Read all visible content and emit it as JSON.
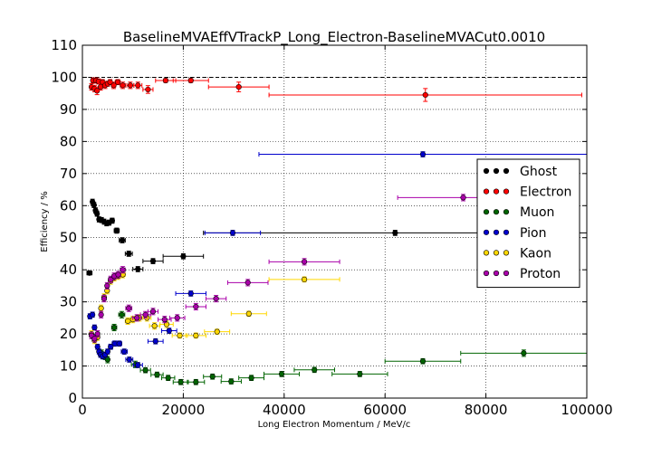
{
  "chart_data": {
    "type": "scatter",
    "title": "BaselineMVAEffVTrackP_Long_Electron-BaselineMVACut0.0010",
    "xlabel": "Long Electron Momentum / MeV/c",
    "ylabel": "Efficiency / %",
    "xlim": [
      0,
      100000
    ],
    "ylim": [
      0,
      110
    ],
    "x_ticks": [
      0,
      20000,
      40000,
      60000,
      80000,
      100000
    ],
    "y_ticks": [
      0,
      10,
      20,
      30,
      40,
      50,
      60,
      70,
      80,
      90,
      100,
      110
    ],
    "x_tick_labels": [
      "0",
      "20000",
      "40000",
      "60000",
      "80000",
      "100000"
    ],
    "y_tick_labels": [
      "0",
      "10",
      "20",
      "30",
      "40",
      "50",
      "60",
      "70",
      "80",
      "90",
      "100",
      "110"
    ],
    "grid": true,
    "reference_line": 100,
    "legend_position": "right",
    "series": [
      {
        "name": "Ghost",
        "color": "#000000",
        "points": [
          {
            "x": 1400,
            "y": 39,
            "xerr": 500,
            "yerr": 0.6
          },
          {
            "x": 2000,
            "y": 61.2,
            "xerr": 250,
            "yerr": 0.8
          },
          {
            "x": 2300,
            "y": 60.2,
            "xerr": 250,
            "yerr": 0.8
          },
          {
            "x": 2600,
            "y": 58.5,
            "xerr": 250,
            "yerr": 0.8
          },
          {
            "x": 2900,
            "y": 57.5,
            "xerr": 250,
            "yerr": 0.8
          },
          {
            "x": 3300,
            "y": 55.7,
            "xerr": 300,
            "yerr": 0.8
          },
          {
            "x": 3800,
            "y": 55.5,
            "xerr": 300,
            "yerr": 0.8
          },
          {
            "x": 4300,
            "y": 55,
            "xerr": 300,
            "yerr": 0.8
          },
          {
            "x": 4800,
            "y": 54.5,
            "xerr": 300,
            "yerr": 0.8
          },
          {
            "x": 5300,
            "y": 54.7,
            "xerr": 300,
            "yerr": 0.8
          },
          {
            "x": 5900,
            "y": 55.3,
            "xerr": 400,
            "yerr": 0.8
          },
          {
            "x": 6800,
            "y": 52.2,
            "xerr": 500,
            "yerr": 0.8
          },
          {
            "x": 7900,
            "y": 49.2,
            "xerr": 600,
            "yerr": 0.8
          },
          {
            "x": 9200,
            "y": 45,
            "xerr": 700,
            "yerr": 0.8
          },
          {
            "x": 11000,
            "y": 40.2,
            "xerr": 1000,
            "yerr": 0.8
          },
          {
            "x": 14000,
            "y": 42.7,
            "xerr": 2000,
            "yerr": 0.8
          },
          {
            "x": 20000,
            "y": 44.2,
            "xerr": 4000,
            "yerr": 0.8
          },
          {
            "x": 62000,
            "y": 51.5,
            "xerr": 38000,
            "yerr": 0.8
          }
        ]
      },
      {
        "name": "Electron",
        "color": "#ff0000",
        "points": [
          {
            "x": 1800,
            "y": 97,
            "xerr": 250,
            "yerr": 1
          },
          {
            "x": 2100,
            "y": 99,
            "xerr": 250,
            "yerr": 0.8
          },
          {
            "x": 2400,
            "y": 96.5,
            "xerr": 250,
            "yerr": 1
          },
          {
            "x": 2700,
            "y": 99,
            "xerr": 250,
            "yerr": 0.8
          },
          {
            "x": 2900,
            "y": 95.8,
            "xerr": 250,
            "yerr": 1.2
          },
          {
            "x": 3200,
            "y": 98.7,
            "xerr": 300,
            "yerr": 0.8
          },
          {
            "x": 3600,
            "y": 97,
            "xerr": 300,
            "yerr": 1
          },
          {
            "x": 4000,
            "y": 98.5,
            "xerr": 300,
            "yerr": 0.8
          },
          {
            "x": 4500,
            "y": 97.5,
            "xerr": 300,
            "yerr": 1
          },
          {
            "x": 5000,
            "y": 98,
            "xerr": 300,
            "yerr": 0.8
          },
          {
            "x": 5500,
            "y": 98.5,
            "xerr": 300,
            "yerr": 0.8
          },
          {
            "x": 6200,
            "y": 97.5,
            "xerr": 400,
            "yerr": 1
          },
          {
            "x": 7000,
            "y": 98.5,
            "xerr": 500,
            "yerr": 0.8
          },
          {
            "x": 8000,
            "y": 97.5,
            "xerr": 500,
            "yerr": 1
          },
          {
            "x": 9500,
            "y": 97.5,
            "xerr": 700,
            "yerr": 1
          },
          {
            "x": 11000,
            "y": 97.5,
            "xerr": 800,
            "yerr": 1
          },
          {
            "x": 13000,
            "y": 96.2,
            "xerr": 1000,
            "yerr": 1.2
          },
          {
            "x": 16500,
            "y": 99,
            "xerr": 2000,
            "yerr": 0.6
          },
          {
            "x": 21500,
            "y": 99,
            "xerr": 3500,
            "yerr": 0.6
          },
          {
            "x": 31000,
            "y": 97,
            "xerr": 6000,
            "yerr": 1.5
          },
          {
            "x": 68000,
            "y": 94.5,
            "xerr": 31000,
            "yerr": 2
          }
        ]
      },
      {
        "name": "Muon",
        "color": "#006400",
        "points": [
          {
            "x": 3800,
            "y": 14,
            "xerr": 300,
            "yerr": 1
          },
          {
            "x": 4500,
            "y": 13,
            "xerr": 300,
            "yerr": 1
          },
          {
            "x": 5000,
            "y": 12,
            "xerr": 300,
            "yerr": 1
          },
          {
            "x": 6300,
            "y": 22,
            "xerr": 500,
            "yerr": 1
          },
          {
            "x": 7800,
            "y": 26,
            "xerr": 600,
            "yerr": 1
          },
          {
            "x": 10500,
            "y": 10.5,
            "xerr": 800,
            "yerr": 1
          },
          {
            "x": 12500,
            "y": 8.7,
            "xerr": 1000,
            "yerr": 0.8
          },
          {
            "x": 14800,
            "y": 7.3,
            "xerr": 1200,
            "yerr": 0.8
          },
          {
            "x": 17000,
            "y": 6.3,
            "xerr": 1300,
            "yerr": 0.8
          },
          {
            "x": 19500,
            "y": 5,
            "xerr": 1500,
            "yerr": 0.8
          },
          {
            "x": 22500,
            "y": 5,
            "xerr": 1700,
            "yerr": 0.8
          },
          {
            "x": 25800,
            "y": 6.7,
            "xerr": 1800,
            "yerr": 0.8
          },
          {
            "x": 29500,
            "y": 5.2,
            "xerr": 2000,
            "yerr": 0.8
          },
          {
            "x": 33500,
            "y": 6.3,
            "xerr": 2500,
            "yerr": 0.8
          },
          {
            "x": 39500,
            "y": 7.5,
            "xerr": 3500,
            "yerr": 0.8
          },
          {
            "x": 46000,
            "y": 8.8,
            "xerr": 4000,
            "yerr": 0.8
          },
          {
            "x": 55000,
            "y": 7.5,
            "xerr": 5500,
            "yerr": 0.8
          },
          {
            "x": 67500,
            "y": 11.5,
            "xerr": 7500,
            "yerr": 0.8
          },
          {
            "x": 87500,
            "y": 14,
            "xerr": 12500,
            "yerr": 1
          }
        ]
      },
      {
        "name": "Pion",
        "color": "#0000cc",
        "points": [
          {
            "x": 1500,
            "y": 25.5,
            "xerr": 300,
            "yerr": 0.8
          },
          {
            "x": 2000,
            "y": 26,
            "xerr": 300,
            "yerr": 0.8
          },
          {
            "x": 2400,
            "y": 22,
            "xerr": 250,
            "yerr": 0.8
          },
          {
            "x": 2700,
            "y": 19,
            "xerr": 250,
            "yerr": 0.8
          },
          {
            "x": 3000,
            "y": 16,
            "xerr": 250,
            "yerr": 0.8
          },
          {
            "x": 3300,
            "y": 14.5,
            "xerr": 250,
            "yerr": 0.8
          },
          {
            "x": 3600,
            "y": 13.5,
            "xerr": 250,
            "yerr": 0.8
          },
          {
            "x": 4000,
            "y": 13,
            "xerr": 300,
            "yerr": 0.8
          },
          {
            "x": 4500,
            "y": 13.5,
            "xerr": 300,
            "yerr": 0.8
          },
          {
            "x": 5000,
            "y": 14.5,
            "xerr": 300,
            "yerr": 0.8
          },
          {
            "x": 5600,
            "y": 16,
            "xerr": 400,
            "yerr": 0.8
          },
          {
            "x": 6400,
            "y": 17,
            "xerr": 500,
            "yerr": 0.8
          },
          {
            "x": 7300,
            "y": 17,
            "xerr": 500,
            "yerr": 0.8
          },
          {
            "x": 8300,
            "y": 14.5,
            "xerr": 600,
            "yerr": 0.8
          },
          {
            "x": 9300,
            "y": 12,
            "xerr": 700,
            "yerr": 0.8
          },
          {
            "x": 11000,
            "y": 10.3,
            "xerr": 900,
            "yerr": 0.8
          },
          {
            "x": 14500,
            "y": 17.7,
            "xerr": 1500,
            "yerr": 0.8
          },
          {
            "x": 17200,
            "y": 21,
            "xerr": 1500,
            "yerr": 0.8
          },
          {
            "x": 21500,
            "y": 32.6,
            "xerr": 3000,
            "yerr": 0.8
          },
          {
            "x": 29800,
            "y": 51.5,
            "xerr": 5500,
            "yerr": 0.8
          },
          {
            "x": 67500,
            "y": 76,
            "xerr": 32500,
            "yerr": 0.8
          }
        ]
      },
      {
        "name": "Kaon",
        "color": "#ffd700",
        "points": [
          {
            "x": 1800,
            "y": 20,
            "xerr": 300,
            "yerr": 1
          },
          {
            "x": 2400,
            "y": 18,
            "xerr": 300,
            "yerr": 1
          },
          {
            "x": 3000,
            "y": 19,
            "xerr": 300,
            "yerr": 1
          },
          {
            "x": 3700,
            "y": 28,
            "xerr": 300,
            "yerr": 1
          },
          {
            "x": 4300,
            "y": 31.5,
            "xerr": 300,
            "yerr": 1
          },
          {
            "x": 4900,
            "y": 33.5,
            "xerr": 300,
            "yerr": 1
          },
          {
            "x": 5600,
            "y": 36.5,
            "xerr": 400,
            "yerr": 1
          },
          {
            "x": 6300,
            "y": 37.5,
            "xerr": 400,
            "yerr": 1
          },
          {
            "x": 7100,
            "y": 38,
            "xerr": 500,
            "yerr": 1
          },
          {
            "x": 8000,
            "y": 38.5,
            "xerr": 500,
            "yerr": 1
          },
          {
            "x": 9000,
            "y": 24,
            "xerr": 500,
            "yerr": 1
          },
          {
            "x": 10000,
            "y": 24.5,
            "xerr": 600,
            "yerr": 1
          },
          {
            "x": 11300,
            "y": 25,
            "xerr": 700,
            "yerr": 1
          },
          {
            "x": 12800,
            "y": 25,
            "xerr": 800,
            "yerr": 1
          },
          {
            "x": 14300,
            "y": 22.5,
            "xerr": 1000,
            "yerr": 1
          },
          {
            "x": 16700,
            "y": 23,
            "xerr": 1300,
            "yerr": 1
          },
          {
            "x": 19300,
            "y": 19.5,
            "xerr": 1500,
            "yerr": 0.8
          },
          {
            "x": 22500,
            "y": 19.5,
            "xerr": 2000,
            "yerr": 0.8
          },
          {
            "x": 26700,
            "y": 20.7,
            "xerr": 2500,
            "yerr": 0.8
          },
          {
            "x": 33000,
            "y": 26.3,
            "xerr": 3500,
            "yerr": 0.8
          },
          {
            "x": 44000,
            "y": 37,
            "xerr": 7000,
            "yerr": 0.8
          }
        ]
      },
      {
        "name": "Proton",
        "color": "#aa00aa",
        "points": [
          {
            "x": 1800,
            "y": 19.5,
            "xerr": 300,
            "yerr": 1
          },
          {
            "x": 2400,
            "y": 18.5,
            "xerr": 300,
            "yerr": 1
          },
          {
            "x": 3000,
            "y": 20,
            "xerr": 300,
            "yerr": 1
          },
          {
            "x": 3700,
            "y": 26,
            "xerr": 300,
            "yerr": 1
          },
          {
            "x": 4300,
            "y": 31,
            "xerr": 300,
            "yerr": 1
          },
          {
            "x": 4900,
            "y": 35,
            "xerr": 300,
            "yerr": 1
          },
          {
            "x": 5600,
            "y": 37,
            "xerr": 400,
            "yerr": 1
          },
          {
            "x": 6300,
            "y": 38,
            "xerr": 400,
            "yerr": 1
          },
          {
            "x": 7100,
            "y": 38.5,
            "xerr": 500,
            "yerr": 1
          },
          {
            "x": 8000,
            "y": 40,
            "xerr": 500,
            "yerr": 1
          },
          {
            "x": 9200,
            "y": 28,
            "xerr": 600,
            "yerr": 1
          },
          {
            "x": 10800,
            "y": 25,
            "xerr": 800,
            "yerr": 1
          },
          {
            "x": 12500,
            "y": 26,
            "xerr": 1000,
            "yerr": 1
          },
          {
            "x": 14000,
            "y": 27,
            "xerr": 1000,
            "yerr": 1
          },
          {
            "x": 16300,
            "y": 24.5,
            "xerr": 1300,
            "yerr": 1
          },
          {
            "x": 18800,
            "y": 25,
            "xerr": 1500,
            "yerr": 1
          },
          {
            "x": 22500,
            "y": 28.5,
            "xerr": 2000,
            "yerr": 1
          },
          {
            "x": 26500,
            "y": 31,
            "xerr": 2000,
            "yerr": 1
          },
          {
            "x": 32800,
            "y": 36,
            "xerr": 4000,
            "yerr": 1
          },
          {
            "x": 44000,
            "y": 42.5,
            "xerr": 7000,
            "yerr": 1
          },
          {
            "x": 75500,
            "y": 62.5,
            "xerr": 13000,
            "yerr": 1
          }
        ]
      }
    ]
  }
}
